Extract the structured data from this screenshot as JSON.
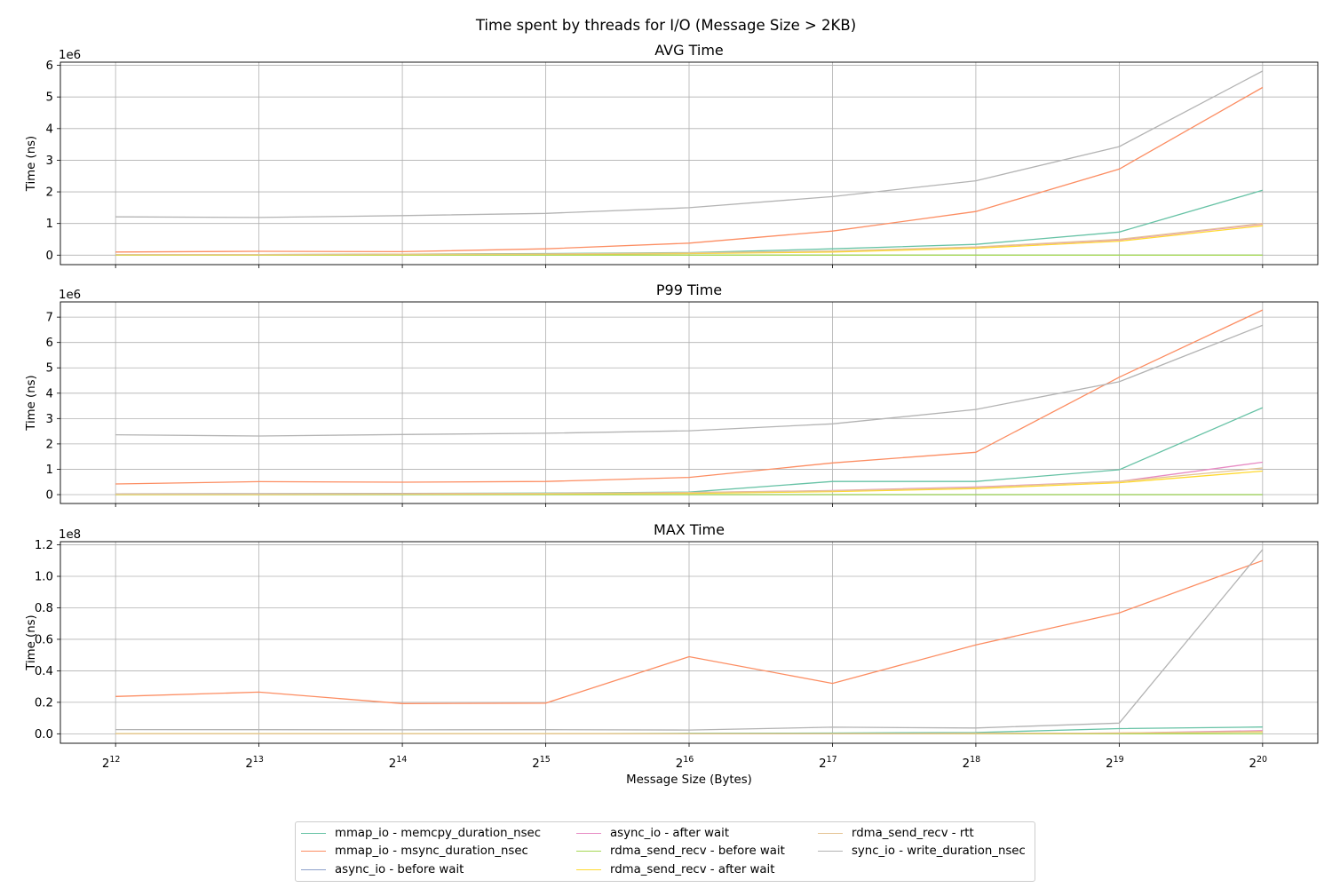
{
  "figure_title": "Time spent by threads for I/O (Message Size > 2KB)",
  "chart_data": {
    "type": "line",
    "xlabel": "Message Size (Bytes)",
    "x": [
      4096,
      8192,
      16384,
      32768,
      65536,
      131072,
      262144,
      524288,
      1048576
    ],
    "x_scale": "log2",
    "x_tick_labels": [
      {
        "base": "2",
        "exp": "12"
      },
      {
        "base": "2",
        "exp": "13"
      },
      {
        "base": "2",
        "exp": "14"
      },
      {
        "base": "2",
        "exp": "15"
      },
      {
        "base": "2",
        "exp": "16"
      },
      {
        "base": "2",
        "exp": "17"
      },
      {
        "base": "2",
        "exp": "18"
      },
      {
        "base": "2",
        "exp": "19"
      },
      {
        "base": "2",
        "exp": "20"
      }
    ],
    "grid": true,
    "legend_placement": "bottom-center",
    "series_names": [
      "mmap_io - memcpy_duration_nsec",
      "mmap_io - msync_duration_nsec",
      "async_io - before wait",
      "async_io - after wait",
      "rdma_send_recv - before wait",
      "rdma_send_recv - after wait",
      "rdma_send_recv - rtt",
      "sync_io - write_duration_nsec"
    ],
    "series_colors": [
      "#66c2a5",
      "#fc8d62",
      "#8da0cb",
      "#e78ac3",
      "#a6d854",
      "#ffd92f",
      "#e5c494",
      "#b3b3b3"
    ],
    "panels": [
      {
        "title": "AVG Time",
        "ylabel": "Time (ns)",
        "offset_label": "1e6",
        "ylim": [
          -0.3,
          6.1
        ],
        "yticks": [
          0,
          1,
          2,
          3,
          4,
          5,
          6
        ],
        "series": [
          {
            "name": "mmap_io - memcpy_duration_nsec",
            "values": [
              0.01,
              0.02,
              0.03,
              0.05,
              0.08,
              0.2,
              0.34,
              0.73,
              2.05
            ]
          },
          {
            "name": "mmap_io - msync_duration_nsec",
            "values": [
              0.1,
              0.12,
              0.11,
              0.2,
              0.38,
              0.76,
              1.38,
              2.72,
              5.3
            ]
          },
          {
            "name": "async_io - before wait",
            "values": [
              0.0,
              0.0,
              0.0,
              0.0,
              0.0,
              0.0,
              0.0,
              0.0,
              0.0
            ]
          },
          {
            "name": "async_io - after wait",
            "values": [
              0.01,
              0.01,
              0.02,
              0.03,
              0.06,
              0.12,
              0.25,
              0.48,
              0.98
            ]
          },
          {
            "name": "rdma_send_recv - before wait",
            "values": [
              0.0,
              0.0,
              0.0,
              0.0,
              0.0,
              0.0,
              0.0,
              0.0,
              0.0
            ]
          },
          {
            "name": "rdma_send_recv - after wait",
            "values": [
              0.01,
              0.01,
              0.02,
              0.03,
              0.05,
              0.1,
              0.22,
              0.44,
              0.93
            ]
          },
          {
            "name": "rdma_send_recv - rtt",
            "values": [
              0.02,
              0.02,
              0.03,
              0.04,
              0.07,
              0.13,
              0.26,
              0.5,
              1.0
            ]
          },
          {
            "name": "sync_io - write_duration_nsec",
            "values": [
              1.21,
              1.19,
              1.25,
              1.32,
              1.5,
              1.85,
              2.35,
              3.43,
              5.82
            ]
          }
        ]
      },
      {
        "title": "P99 Time",
        "ylabel": "Time (ns)",
        "offset_label": "1e6",
        "ylim": [
          -0.35,
          7.6
        ],
        "yticks": [
          0,
          1,
          2,
          3,
          4,
          5,
          6,
          7
        ],
        "series": [
          {
            "name": "mmap_io - memcpy_duration_nsec",
            "values": [
              0.03,
              0.04,
              0.05,
              0.06,
              0.1,
              0.52,
              0.52,
              0.98,
              3.43
            ]
          },
          {
            "name": "mmap_io - msync_duration_nsec",
            "values": [
              0.42,
              0.51,
              0.49,
              0.52,
              0.68,
              1.25,
              1.67,
              4.63,
              7.28
            ]
          },
          {
            "name": "async_io - before wait",
            "values": [
              0.0,
              0.0,
              0.0,
              0.0,
              0.0,
              0.0,
              0.0,
              0.0,
              0.0
            ]
          },
          {
            "name": "async_io - after wait",
            "values": [
              0.02,
              0.03,
              0.04,
              0.05,
              0.08,
              0.16,
              0.3,
              0.52,
              1.28
            ]
          },
          {
            "name": "rdma_send_recv - before wait",
            "values": [
              0.0,
              0.0,
              0.0,
              0.0,
              0.0,
              0.0,
              0.0,
              0.0,
              0.0
            ]
          },
          {
            "name": "rdma_send_recv - after wait",
            "values": [
              0.01,
              0.01,
              0.02,
              0.03,
              0.05,
              0.12,
              0.24,
              0.47,
              0.93
            ]
          },
          {
            "name": "rdma_send_recv - rtt",
            "values": [
              0.02,
              0.02,
              0.03,
              0.05,
              0.08,
              0.15,
              0.28,
              0.52,
              1.05
            ]
          },
          {
            "name": "sync_io - write_duration_nsec",
            "values": [
              2.36,
              2.31,
              2.37,
              2.42,
              2.52,
              2.79,
              3.36,
              4.45,
              6.68
            ]
          }
        ]
      },
      {
        "title": "MAX Time",
        "ylabel": "Time (ns)",
        "offset_label": "1e8",
        "ylim": [
          -0.06,
          1.22
        ],
        "yticks": [
          0.0,
          0.2,
          0.4,
          0.6,
          0.8,
          1.0,
          1.2
        ],
        "series": [
          {
            "name": "mmap_io - memcpy_duration_nsec",
            "values": [
              0.0,
              0.0,
              0.0,
              0.0,
              0.003,
              0.005,
              0.008,
              0.033,
              0.043
            ]
          },
          {
            "name": "mmap_io - msync_duration_nsec",
            "values": [
              0.237,
              0.265,
              0.192,
              0.195,
              0.49,
              0.32,
              0.565,
              0.768,
              1.1
            ]
          },
          {
            "name": "async_io - before wait",
            "values": [
              0.0,
              0.0,
              0.0,
              0.0,
              0.0,
              0.0,
              0.0,
              0.0,
              0.0
            ]
          },
          {
            "name": "async_io - after wait",
            "values": [
              0.0,
              0.0,
              0.0,
              0.0,
              0.0,
              0.0,
              0.002,
              0.005,
              0.02
            ]
          },
          {
            "name": "rdma_send_recv - before wait",
            "values": [
              0.0,
              0.0,
              0.0,
              0.0,
              0.0,
              0.0,
              0.0,
              0.0,
              0.0
            ]
          },
          {
            "name": "rdma_send_recv - after wait",
            "values": [
              0.0,
              0.0,
              0.0,
              0.0,
              0.0,
              0.0,
              0.002,
              0.005,
              0.012
            ]
          },
          {
            "name": "rdma_send_recv - rtt",
            "values": [
              0.0,
              0.0,
              0.0,
              0.0,
              0.0,
              0.0,
              0.002,
              0.005,
              0.015
            ]
          },
          {
            "name": "sync_io - write_duration_nsec",
            "values": [
              0.027,
              0.026,
              0.025,
              0.026,
              0.024,
              0.042,
              0.037,
              0.068,
              1.17
            ]
          }
        ]
      }
    ]
  }
}
